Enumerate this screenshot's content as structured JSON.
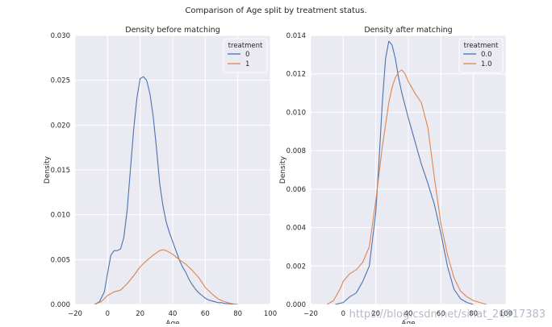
{
  "suptitle": "Comparison of Age split by treatment status.",
  "watermark": "https://blog.csdn.net/sinat_26917383",
  "colors": {
    "blue": "#4c72b0",
    "orange": "#dd8452",
    "panel": "#eaeaf2",
    "grid": "#ffffff"
  },
  "chart_data": [
    {
      "type": "line",
      "title": "Density before matching",
      "xlabel": "Age",
      "ylabel": "Density",
      "xlim": [
        -20,
        100
      ],
      "ylim": [
        0,
        0.03
      ],
      "xticks": [
        -20,
        0,
        20,
        40,
        60,
        80,
        100
      ],
      "xtick_labels": [
        "−20",
        "0",
        "20",
        "40",
        "60",
        "80",
        "100"
      ],
      "yticks": [
        0,
        0.005,
        0.01,
        0.015,
        0.02,
        0.025,
        0.03
      ],
      "ytick_labels": [
        "0.000",
        "0.005",
        "0.010",
        "0.015",
        "0.020",
        "0.025",
        "0.030"
      ],
      "grid": true,
      "legend": {
        "title": "treatment",
        "position": "top-right"
      },
      "series": [
        {
          "name": "0",
          "color": "#4c72b0",
          "x": [
            -8,
            -5,
            -2,
            0,
            2,
            4,
            6,
            8,
            10,
            12,
            14,
            16,
            18,
            20,
            22,
            24,
            26,
            28,
            30,
            32,
            34,
            36,
            38,
            40,
            42,
            44,
            46,
            48,
            50,
            52,
            54,
            56,
            58,
            60,
            62,
            64,
            66,
            68,
            70,
            72,
            74,
            76,
            78,
            80
          ],
          "y": [
            0,
            0.0003,
            0.0014,
            0.0035,
            0.0055,
            0.006,
            0.006,
            0.0062,
            0.0075,
            0.0105,
            0.015,
            0.0195,
            0.023,
            0.0252,
            0.0254,
            0.025,
            0.0235,
            0.021,
            0.0175,
            0.0135,
            0.011,
            0.0092,
            0.008,
            0.007,
            0.006,
            0.005,
            0.0042,
            0.0036,
            0.0028,
            0.0022,
            0.0017,
            0.0013,
            0.001,
            0.0007,
            0.0005,
            0.0004,
            0.0003,
            0.0002,
            0.0002,
            0.0001,
            0.0001,
            5e-05,
            2e-05,
            0
          ]
        },
        {
          "name": "1",
          "color": "#dd8452",
          "x": [
            -8,
            -4,
            0,
            4,
            8,
            12,
            16,
            20,
            24,
            28,
            32,
            34,
            36,
            40,
            44,
            48,
            52,
            56,
            60,
            64,
            68,
            72,
            76,
            80
          ],
          "y": [
            0,
            0.0003,
            0.001,
            0.0014,
            0.0016,
            0.0023,
            0.0032,
            0.0042,
            0.0049,
            0.0055,
            0.006,
            0.0061,
            0.006,
            0.0056,
            0.005,
            0.0045,
            0.0038,
            0.003,
            0.0019,
            0.0012,
            0.0006,
            0.0003,
            0.0001,
            0
          ]
        }
      ]
    },
    {
      "type": "line",
      "title": "Density after matching",
      "xlabel": "Age",
      "ylabel": "Density",
      "xlim": [
        -20,
        100
      ],
      "ylim": [
        0,
        0.014
      ],
      "xticks": [
        -20,
        0,
        20,
        40,
        60,
        80,
        100
      ],
      "xtick_labels": [
        "−20",
        "0",
        "20",
        "40",
        "60",
        "80",
        "100"
      ],
      "yticks": [
        0,
        0.002,
        0.004,
        0.006,
        0.008,
        0.01,
        0.012,
        0.014
      ],
      "ytick_labels": [
        "0.000",
        "0.002",
        "0.004",
        "0.006",
        "0.008",
        "0.010",
        "0.012",
        "0.014"
      ],
      "grid": true,
      "legend": {
        "title": "treatment",
        "position": "top-right"
      },
      "series": [
        {
          "name": "0.0",
          "color": "#4c72b0",
          "x": [
            -5,
            0,
            4,
            8,
            12,
            16,
            20,
            22,
            24,
            26,
            28,
            30,
            32,
            34,
            36,
            40,
            44,
            48,
            52,
            56,
            60,
            64,
            68,
            72,
            76,
            80
          ],
          "y": [
            0,
            0.0001,
            0.0004,
            0.0006,
            0.0012,
            0.002,
            0.0048,
            0.0075,
            0.0105,
            0.0128,
            0.0137,
            0.0135,
            0.0128,
            0.0118,
            0.011,
            0.0097,
            0.0085,
            0.0073,
            0.0063,
            0.0052,
            0.0037,
            0.002,
            0.0008,
            0.0003,
            0.0001,
            0
          ]
        },
        {
          "name": "1.0",
          "color": "#dd8452",
          "x": [
            -10,
            -6,
            -2,
            0,
            4,
            8,
            12,
            16,
            20,
            24,
            28,
            30,
            32,
            34,
            36,
            38,
            40,
            44,
            48,
            52,
            56,
            60,
            64,
            68,
            72,
            76,
            80,
            84,
            88
          ],
          "y": [
            0,
            0.0002,
            0.0008,
            0.0012,
            0.0016,
            0.0018,
            0.0022,
            0.003,
            0.0054,
            0.0082,
            0.0105,
            0.0113,
            0.0118,
            0.0121,
            0.0122,
            0.012,
            0.0116,
            0.011,
            0.0105,
            0.0092,
            0.0066,
            0.0042,
            0.0026,
            0.0014,
            0.0007,
            0.0004,
            0.0002,
            0.0001,
            0
          ]
        }
      ]
    }
  ]
}
